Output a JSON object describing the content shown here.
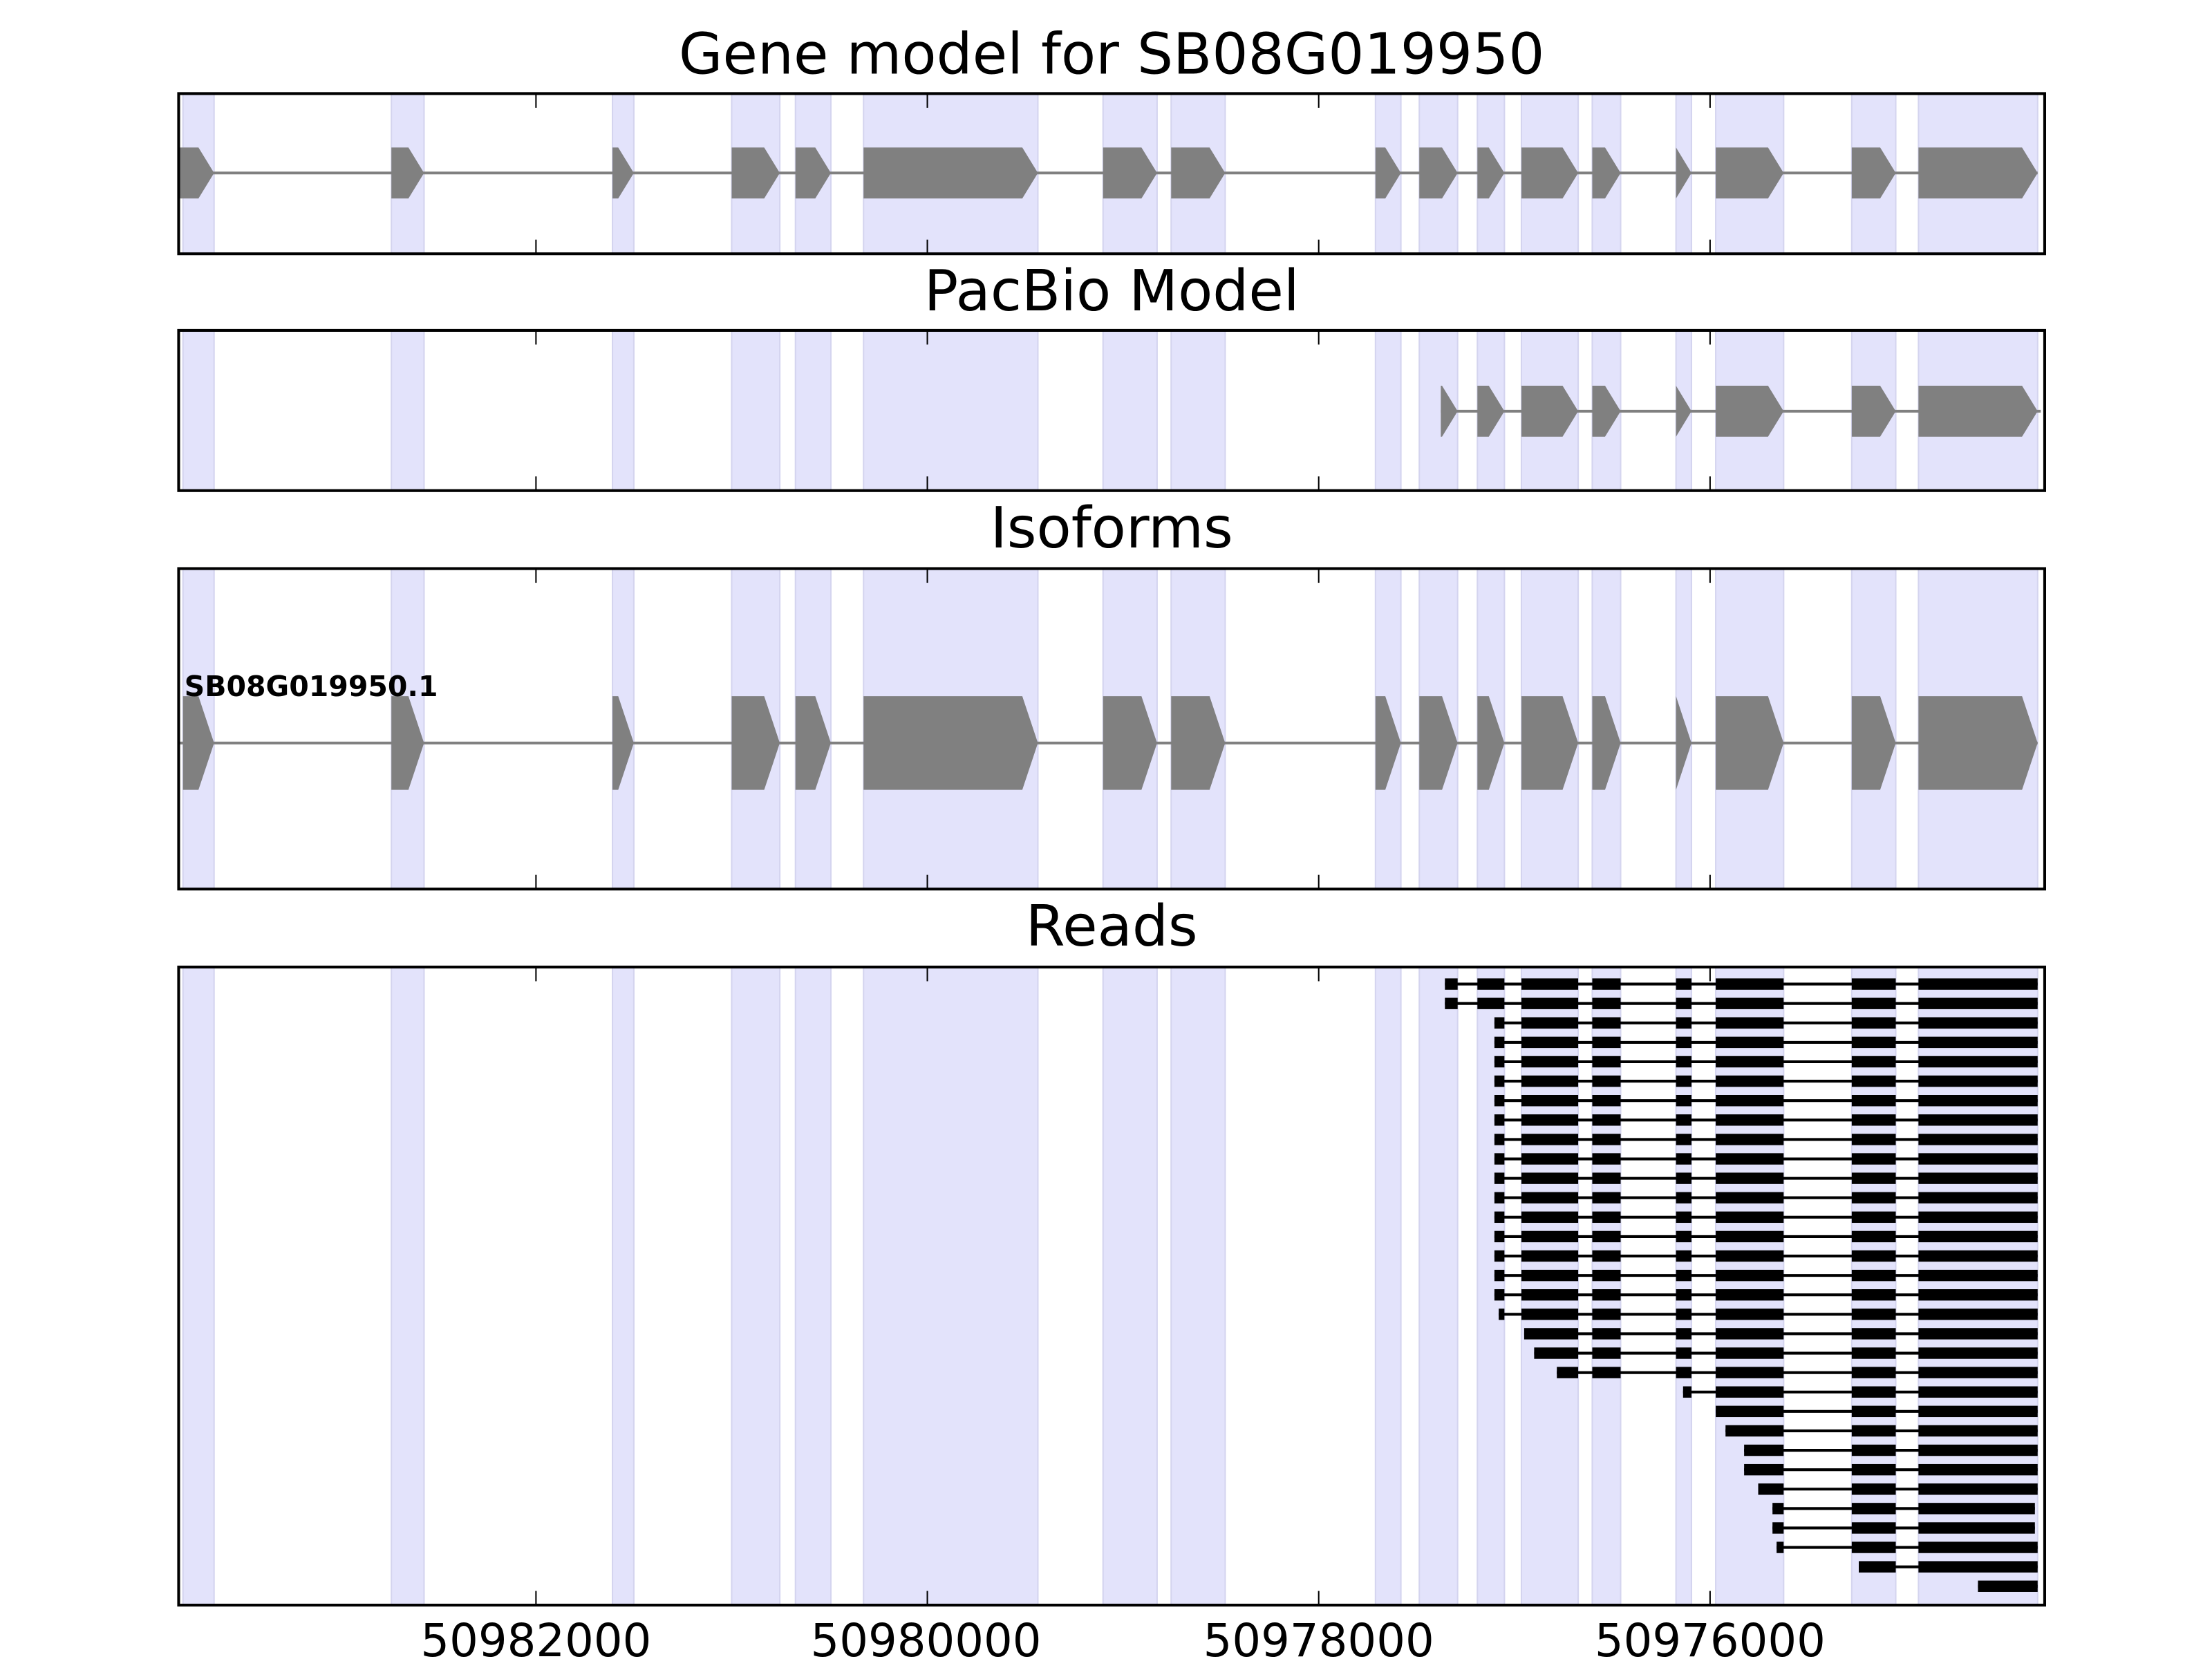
{
  "colors": {
    "exon_shade": "#e3e3fb",
    "exon_shade_edge": "#d4d4ef",
    "gene_fill": "#808080",
    "read_fill": "#000000",
    "axes": "#000000"
  },
  "chart_data": {
    "type": "gene-structure",
    "xlim": [
      50983826,
      50974290
    ],
    "x_reversed": true,
    "xticks": [
      50982000,
      50980000,
      50978000,
      50976000
    ],
    "xtick_labels": [
      "50982000",
      "50980000",
      "50978000",
      "50976000"
    ],
    "exons": [
      [
        50983804,
        50983645
      ],
      [
        50982739,
        50982572
      ],
      [
        50981609,
        50981500
      ],
      [
        50981000,
        50980754
      ],
      [
        50980674,
        50980493
      ],
      [
        50980326,
        50979435
      ],
      [
        50979102,
        50978826
      ],
      [
        50978754,
        50978478
      ],
      [
        50977710,
        50977580
      ],
      [
        50977486,
        50977290
      ],
      [
        50977189,
        50977051
      ],
      [
        50976964,
        50976674
      ],
      [
        50976602,
        50976457
      ],
      [
        50976174,
        50976095
      ],
      [
        50975971,
        50975624
      ],
      [
        50975276,
        50975051
      ],
      [
        50974935,
        50974326
      ]
    ],
    "panels": [
      {
        "id": "gene-model",
        "title": "Gene model for SB08G019950"
      },
      {
        "id": "pacbio-model",
        "title": "PacBio Model"
      },
      {
        "id": "isoforms",
        "title": "Isoforms"
      },
      {
        "id": "reads",
        "title": "Reads"
      }
    ],
    "gene_model": {
      "start": 50983826,
      "end": 50974326,
      "strand": "-"
    },
    "pacbio_model": {
      "start": 50977376,
      "end": 50974310
    },
    "isoforms": [
      {
        "name": "SB08G019950.1",
        "start": 50983826,
        "end": 50974326
      }
    ],
    "reads": [
      {
        "start": 50977355,
        "end": 50974326
      },
      {
        "start": 50977355,
        "end": 50974326
      },
      {
        "start": 50977102,
        "end": 50974326
      },
      {
        "start": 50977102,
        "end": 50974326
      },
      {
        "start": 50977102,
        "end": 50974326
      },
      {
        "start": 50977102,
        "end": 50974326
      },
      {
        "start": 50977102,
        "end": 50974326
      },
      {
        "start": 50977102,
        "end": 50974326
      },
      {
        "start": 50977102,
        "end": 50974326
      },
      {
        "start": 50977102,
        "end": 50974326
      },
      {
        "start": 50977102,
        "end": 50974326
      },
      {
        "start": 50977102,
        "end": 50974326
      },
      {
        "start": 50977102,
        "end": 50974326
      },
      {
        "start": 50977102,
        "end": 50974326
      },
      {
        "start": 50977102,
        "end": 50974326
      },
      {
        "start": 50977102,
        "end": 50974326
      },
      {
        "start": 50977102,
        "end": 50974326
      },
      {
        "start": 50977080,
        "end": 50974326
      },
      {
        "start": 50976950,
        "end": 50974326
      },
      {
        "start": 50976899,
        "end": 50974326
      },
      {
        "start": 50976783,
        "end": 50974326
      },
      {
        "start": 50976138,
        "end": 50974326
      },
      {
        "start": 50975971,
        "end": 50974326
      },
      {
        "start": 50975921,
        "end": 50974326
      },
      {
        "start": 50975826,
        "end": 50974326
      },
      {
        "start": 50975826,
        "end": 50974326
      },
      {
        "start": 50975754,
        "end": 50974326
      },
      {
        "start": 50975681,
        "end": 50974340
      },
      {
        "start": 50975681,
        "end": 50974340
      },
      {
        "start": 50975660,
        "end": 50974326
      },
      {
        "start": 50975240,
        "end": 50974326
      },
      {
        "start": 50974631,
        "end": 50974326
      }
    ]
  }
}
